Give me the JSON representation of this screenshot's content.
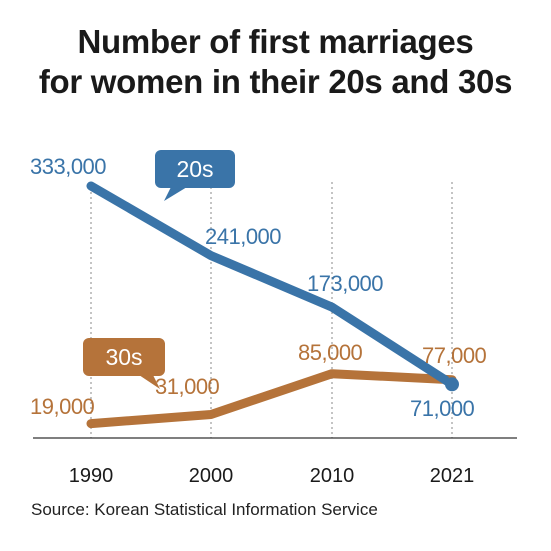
{
  "chart_data": {
    "type": "line",
    "title_lines": [
      "Number of first marriages",
      "for women in their 20s and 30s"
    ],
    "categories": [
      "1990",
      "2000",
      "2010",
      "2021"
    ],
    "series": [
      {
        "name": "20s",
        "values": [
          333000,
          241000,
          173000,
          71000
        ],
        "labels": [
          "333,000",
          "241,000",
          "173,000",
          "71,000"
        ],
        "color": "#3a74a8"
      },
      {
        "name": "30s",
        "values": [
          19000,
          31000,
          85000,
          77000
        ],
        "labels": [
          "19,000",
          "31,000",
          "85,000",
          "77,000"
        ],
        "color": "#b5733a"
      }
    ],
    "ylim": [
      0,
      350000
    ],
    "grid": "vertical-dotted",
    "legend": "callout-bubbles",
    "xlabel": "",
    "ylabel": ""
  },
  "source": "Source: Korean Statistical Information Service"
}
